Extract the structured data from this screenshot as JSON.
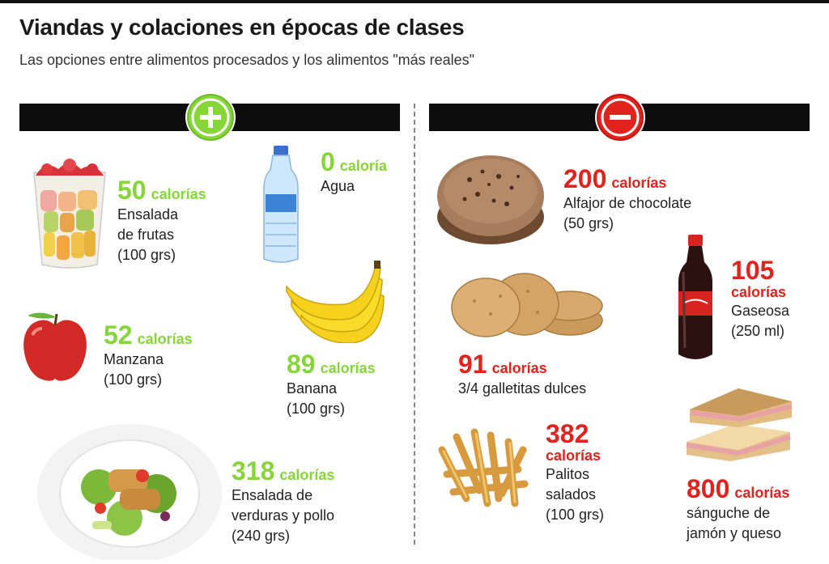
{
  "title": "Viandas y colaciones en épocas de clases",
  "subtitle": "Las opciones entre alimentos procesados y los alimentos \"más reales\"",
  "colors": {
    "healthy": "#86d63a",
    "processed": "#e2221c",
    "bar": "#0d0d0d"
  },
  "healthy": {
    "badge_icon": "plus-icon",
    "items": [
      {
        "number": "50",
        "unit": "calorías",
        "lines": [
          "Ensalada",
          "de frutas",
          "(100 grs)"
        ],
        "icon": "fruit-salad-cup-icon"
      },
      {
        "number": "0",
        "unit": "caloría",
        "lines": [
          "Agua"
        ],
        "icon": "water-bottle-icon"
      },
      {
        "number": "52",
        "unit": "calorías",
        "lines": [
          "Manzana",
          "(100 grs)"
        ],
        "icon": "apple-icon"
      },
      {
        "number": "89",
        "unit": "calorías",
        "lines": [
          "Banana",
          "(100 grs)"
        ],
        "icon": "banana-icon"
      },
      {
        "number": "318",
        "unit": "calorías",
        "lines": [
          "Ensalada de",
          "verduras y pollo",
          "(240 grs)"
        ],
        "icon": "chicken-salad-icon"
      }
    ]
  },
  "processed": {
    "badge_icon": "minus-icon",
    "items": [
      {
        "number": "200",
        "unit": "calorías",
        "lines": [
          "Alfajor de chocolate",
          "(50 grs)"
        ],
        "icon": "alfajor-icon"
      },
      {
        "number": "105",
        "unit": "calorías",
        "lines": [
          "Gaseosa",
          "(250 ml)"
        ],
        "icon": "soda-bottle-icon"
      },
      {
        "number": "91",
        "unit": "calorías",
        "lines": [
          "3/4 galletitas dulces"
        ],
        "icon": "cookies-icon"
      },
      {
        "number": "382",
        "unit": "calorías",
        "lines": [
          "Palitos",
          "salados",
          "(100 grs)"
        ],
        "icon": "salty-sticks-icon"
      },
      {
        "number": "800",
        "unit": "calorías",
        "lines": [
          "sánguche de",
          "jamón y queso"
        ],
        "icon": "sandwich-icon"
      }
    ]
  }
}
